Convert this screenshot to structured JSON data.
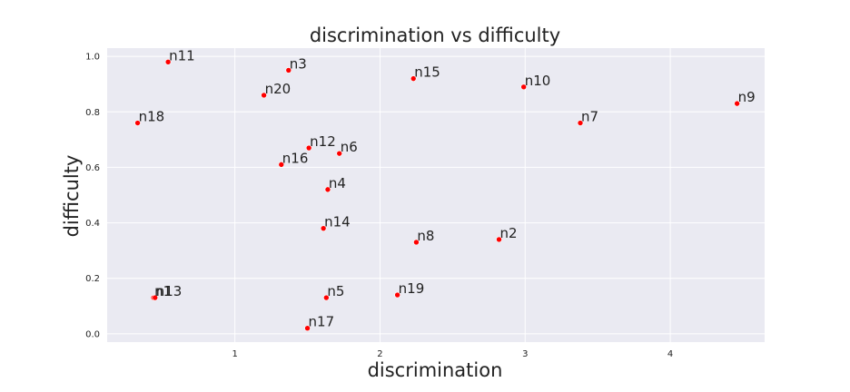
{
  "chart_data": {
    "type": "scatter",
    "title": "discrimination vs difficulty",
    "xlabel": "discrimination",
    "ylabel": "difficulty",
    "xlim": [
      0.12,
      4.65
    ],
    "ylim": [
      -0.03,
      1.03
    ],
    "xticks": [
      1,
      2,
      3,
      4
    ],
    "xtick_labels": [
      "1",
      "2",
      "3",
      "4"
    ],
    "yticks": [
      0.0,
      0.2,
      0.4,
      0.6,
      0.8,
      1.0
    ],
    "ytick_labels": [
      "0.0",
      "0.2",
      "0.4",
      "0.6",
      "0.8",
      "1.0"
    ],
    "grid": true,
    "marker_color": "#ff0000",
    "background_color": "#eaeaf2",
    "grid_color": "#ffffff",
    "points": [
      {
        "label": "n1",
        "x": 0.44,
        "y": 0.13
      },
      {
        "label": "n2",
        "x": 2.82,
        "y": 0.34
      },
      {
        "label": "n3",
        "x": 1.37,
        "y": 0.95
      },
      {
        "label": "n4",
        "x": 1.64,
        "y": 0.52
      },
      {
        "label": "n5",
        "x": 1.63,
        "y": 0.13
      },
      {
        "label": "n6",
        "x": 1.72,
        "y": 0.65
      },
      {
        "label": "n7",
        "x": 3.38,
        "y": 0.76
      },
      {
        "label": "n8",
        "x": 2.25,
        "y": 0.33
      },
      {
        "label": "n9",
        "x": 4.46,
        "y": 0.83
      },
      {
        "label": "n10",
        "x": 2.99,
        "y": 0.89
      },
      {
        "label": "n11",
        "x": 0.54,
        "y": 0.98
      },
      {
        "label": "n12",
        "x": 1.51,
        "y": 0.67
      },
      {
        "label": "n13",
        "x": 0.45,
        "y": 0.13
      },
      {
        "label": "n14",
        "x": 1.61,
        "y": 0.38
      },
      {
        "label": "n15",
        "x": 2.23,
        "y": 0.92
      },
      {
        "label": "n16",
        "x": 1.32,
        "y": 0.61
      },
      {
        "label": "n17",
        "x": 1.5,
        "y": 0.02
      },
      {
        "label": "n18",
        "x": 0.33,
        "y": 0.76
      },
      {
        "label": "n19",
        "x": 2.12,
        "y": 0.14
      },
      {
        "label": "n20",
        "x": 1.2,
        "y": 0.86
      }
    ]
  }
}
